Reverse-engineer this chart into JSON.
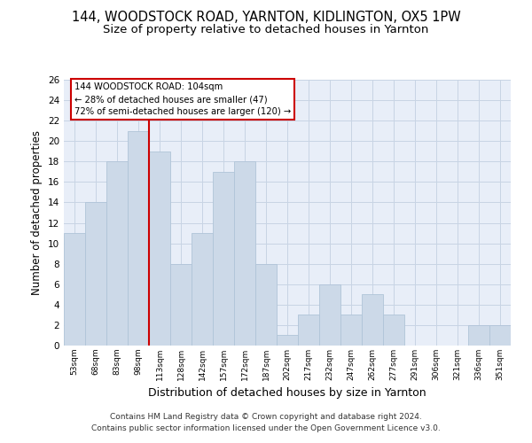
{
  "title1": "144, WOODSTOCK ROAD, YARNTON, KIDLINGTON, OX5 1PW",
  "title2": "Size of property relative to detached houses in Yarnton",
  "xlabel": "Distribution of detached houses by size in Yarnton",
  "ylabel": "Number of detached properties",
  "categories": [
    "53sqm",
    "68sqm",
    "83sqm",
    "98sqm",
    "113sqm",
    "128sqm",
    "142sqm",
    "157sqm",
    "172sqm",
    "187sqm",
    "202sqm",
    "217sqm",
    "232sqm",
    "247sqm",
    "262sqm",
    "277sqm",
    "291sqm",
    "306sqm",
    "321sqm",
    "336sqm",
    "351sqm"
  ],
  "values": [
    11,
    14,
    18,
    21,
    19,
    8,
    11,
    17,
    18,
    8,
    1,
    3,
    6,
    3,
    5,
    3,
    0,
    0,
    0,
    2,
    2
  ],
  "bar_color": "#ccd9e8",
  "bar_edge_color": "#b0c4d8",
  "vline_x": 3.5,
  "vline_color": "#cc0000",
  "annotation_text": "144 WOODSTOCK ROAD: 104sqm\n← 28% of detached houses are smaller (47)\n72% of semi-detached houses are larger (120) →",
  "annotation_box_color": "#ffffff",
  "annotation_box_edge": "#cc0000",
  "ylim": [
    0,
    26
  ],
  "yticks": [
    0,
    2,
    4,
    6,
    8,
    10,
    12,
    14,
    16,
    18,
    20,
    22,
    24,
    26
  ],
  "grid_color": "#c8d4e4",
  "bg_color": "#e8eef8",
  "footer": "Contains HM Land Registry data © Crown copyright and database right 2024.\nContains public sector information licensed under the Open Government Licence v3.0.",
  "title1_fontsize": 10.5,
  "title2_fontsize": 9.5,
  "xlabel_fontsize": 9,
  "ylabel_fontsize": 8.5,
  "footer_fontsize": 6.5
}
